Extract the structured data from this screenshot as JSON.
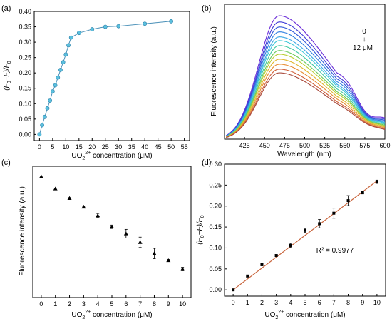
{
  "chart_data": [
    {
      "panel_label": "(a)",
      "type": "scatter",
      "xlabel_main": "UO",
      "xlabel_sub": "2",
      "xlabel_sup": "2+",
      "xlabel_rest": " concentration (μM)",
      "ylabel_main": "(F",
      "ylabel_sub1": "0",
      "ylabel_mid": "−F)/F",
      "ylabel_sub2": "0",
      "xlim": [
        -2,
        57
      ],
      "ylim": [
        -0.02,
        0.4
      ],
      "xticks": [
        0,
        5,
        10,
        15,
        20,
        25,
        30,
        35,
        40,
        45,
        50,
        55
      ],
      "xtick_labels": [
        "0",
        "5",
        "10",
        "15",
        "20",
        "25",
        "30",
        "35",
        "40",
        "45",
        "50",
        "55"
      ],
      "yticks": [
        0.0,
        0.05,
        0.1,
        0.15,
        0.2,
        0.25,
        0.3,
        0.35,
        0.4
      ],
      "ytick_labels": [
        "0.00",
        "0.05",
        "0.10",
        "0.15",
        "0.20",
        "0.25",
        "0.30",
        "0.35",
        "0.40"
      ],
      "x": [
        0,
        1,
        2,
        3,
        4,
        5,
        6,
        7,
        8,
        9,
        10,
        11,
        12,
        15,
        20,
        25,
        30,
        40,
        50
      ],
      "y": [
        0.0,
        0.03,
        0.057,
        0.085,
        0.11,
        0.14,
        0.16,
        0.185,
        0.21,
        0.235,
        0.26,
        0.29,
        0.315,
        0.33,
        0.342,
        0.35,
        0.352,
        0.36,
        0.368
      ],
      "point_color": "#5bc0de",
      "line_color": "#4a90b8"
    },
    {
      "panel_label": "(b)",
      "type": "line",
      "xlabel": "Wavelength (nm)",
      "ylabel": "Fluorescence intensity (a.u.)",
      "xlim": [
        400,
        600
      ],
      "xticks": [
        425,
        450,
        475,
        500,
        525,
        550,
        575,
        600
      ],
      "xtick_labels": [
        "425",
        "450",
        "475",
        "500",
        "525",
        "550",
        "575",
        "600"
      ],
      "annotation_top": "0",
      "annotation_arrow": "↓",
      "annotation_bottom": "12 μM",
      "peak_nm": 468,
      "series_peaks": [
        1.0,
        0.95,
        0.91,
        0.87,
        0.83,
        0.8,
        0.76,
        0.72,
        0.69,
        0.65,
        0.61,
        0.57,
        0.54
      ],
      "series_colors": [
        "#6a2bd8",
        "#3f3bd6",
        "#2e57d9",
        "#2f7fe0",
        "#3aa6e6",
        "#3cc7d8",
        "#3fc9a3",
        "#6acb5a",
        "#b9cd32",
        "#e0b52b",
        "#e68a2e",
        "#d0603a",
        "#a8483a"
      ]
    },
    {
      "panel_label": "(c)",
      "type": "scatter",
      "xlabel_main": "UO",
      "xlabel_sub": "2",
      "xlabel_sup": "2+",
      "xlabel_rest": " concentration (μM)",
      "ylabel": "Fluorescence intensity (a.u.)",
      "xlim": [
        -0.6,
        10.6
      ],
      "ylim": [
        0.3,
        1.06
      ],
      "xticks": [
        0,
        1,
        2,
        3,
        4,
        5,
        6,
        7,
        8,
        9,
        10
      ],
      "xtick_labels": [
        "0",
        "1",
        "2",
        "3",
        "4",
        "5",
        "6",
        "7",
        "8",
        "9",
        "10"
      ],
      "x": [
        0,
        1,
        2,
        3,
        4,
        5,
        6,
        7,
        8,
        9,
        10
      ],
      "y": [
        1.0,
        0.93,
        0.875,
        0.825,
        0.775,
        0.71,
        0.67,
        0.62,
        0.555,
        0.515,
        0.465
      ],
      "err": [
        0.004,
        0.004,
        0.004,
        0.004,
        0.012,
        0.01,
        0.025,
        0.03,
        0.03,
        0.006,
        0.01
      ]
    },
    {
      "panel_label": "(d)",
      "type": "scatter",
      "xlabel_main": "UO",
      "xlabel_sub": "2",
      "xlabel_sup": "2+",
      "xlabel_rest": " concentration (μM)",
      "ylabel_main": "(F",
      "ylabel_sub1": "0",
      "ylabel_mid": "−F)/F",
      "ylabel_sub2": "0",
      "xlim": [
        -0.6,
        10.6
      ],
      "ylim": [
        -0.015,
        0.3
      ],
      "xticks": [
        0,
        1,
        2,
        3,
        4,
        5,
        6,
        7,
        8,
        9,
        10
      ],
      "xtick_labels": [
        "0",
        "1",
        "2",
        "3",
        "4",
        "5",
        "6",
        "7",
        "8",
        "9",
        "10"
      ],
      "yticks": [
        0.0,
        0.05,
        0.1,
        0.15,
        0.2,
        0.25,
        0.3
      ],
      "ytick_labels": [
        "0.00",
        "0.05",
        "0.10",
        "0.15",
        "0.20",
        "0.25",
        "0.30"
      ],
      "x": [
        0,
        1,
        2,
        3,
        4,
        5,
        6,
        7,
        8,
        9,
        10
      ],
      "y": [
        0.0,
        0.033,
        0.06,
        0.082,
        0.106,
        0.142,
        0.158,
        0.183,
        0.213,
        0.232,
        0.258
      ],
      "err": [
        0.002,
        0.002,
        0.002,
        0.002,
        0.005,
        0.005,
        0.01,
        0.012,
        0.012,
        0.003,
        0.004
      ],
      "fit_line": [
        [
          0,
          0.0
        ],
        [
          10,
          0.26
        ]
      ],
      "fit_color": "#c8643c",
      "annotation": "R² = 0.9977"
    }
  ]
}
